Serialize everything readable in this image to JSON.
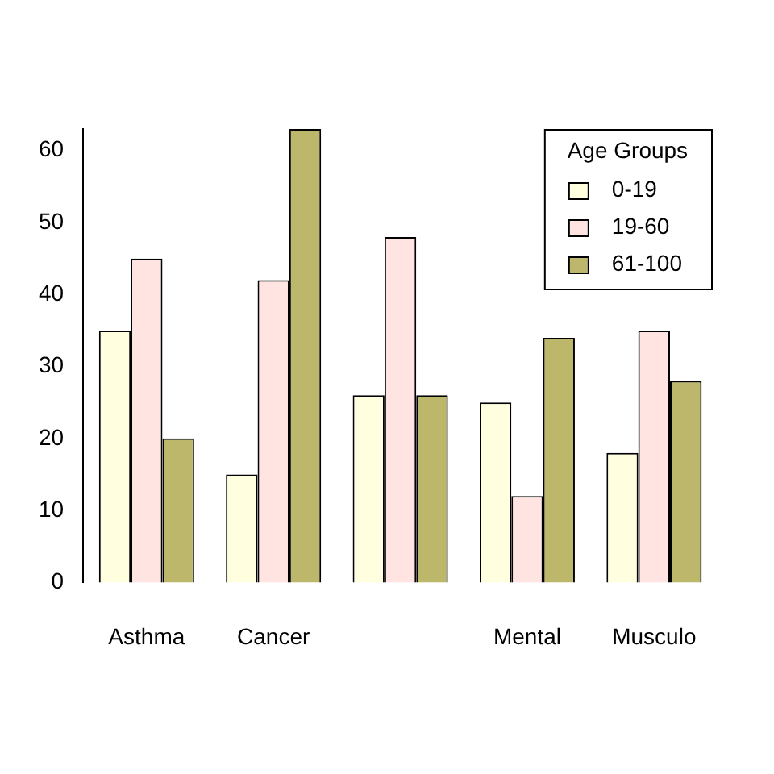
{
  "chart_data": {
    "type": "bar",
    "categories": [
      "Asthma",
      "Cancer",
      null,
      "Mental",
      "Musculo"
    ],
    "series": [
      {
        "name": "0-19",
        "color": "#ffffe0",
        "values": [
          35,
          15,
          26,
          25,
          18
        ]
      },
      {
        "name": "19-60",
        "color": "#ffe4e1",
        "values": [
          45,
          42,
          48,
          12,
          35
        ]
      },
      {
        "name": "61-100",
        "color": "#bdb76b",
        "values": [
          20,
          63,
          26,
          34,
          28
        ]
      }
    ],
    "ylim": [
      0,
      63
    ],
    "yticks": [
      0,
      10,
      20,
      30,
      40,
      50,
      60
    ],
    "legend": "top right",
    "legend_title": "Age Groups"
  }
}
